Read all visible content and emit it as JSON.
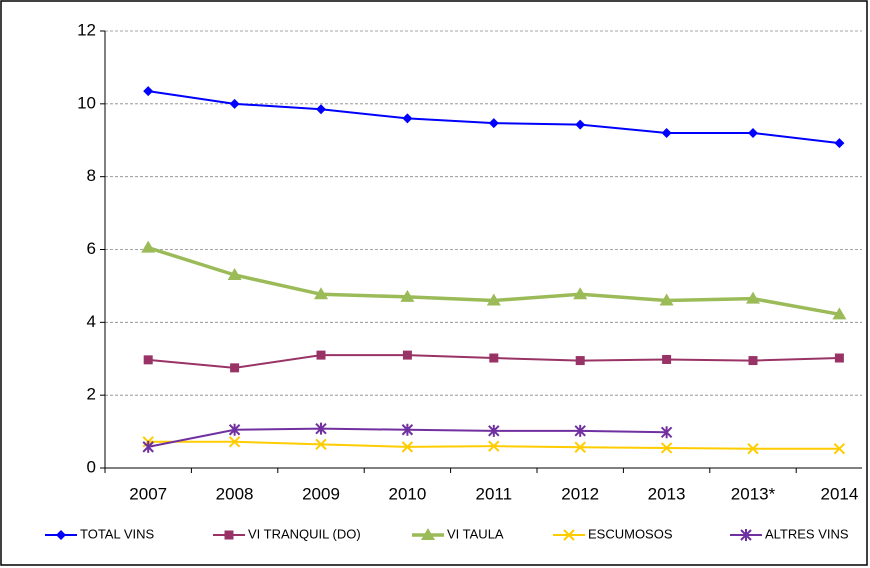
{
  "chart_data": {
    "type": "line",
    "categories": [
      "2007",
      "2008",
      "2009",
      "2010",
      "2011",
      "2012",
      "2013",
      "2013*",
      "2014"
    ],
    "series": [
      {
        "name": "TOTAL VINS",
        "color": "#0000ff",
        "marker": "diamond",
        "values": [
          10.35,
          10.0,
          9.85,
          9.6,
          9.47,
          9.43,
          9.2,
          9.2,
          8.92
        ]
      },
      {
        "name": "VI TRANQUIL (DO)",
        "color": "#993366",
        "marker": "square",
        "values": [
          2.97,
          2.75,
          3.1,
          3.1,
          3.02,
          2.95,
          2.98,
          2.95,
          3.02
        ]
      },
      {
        "name": "VI TAULA",
        "color": "#9bbb59",
        "marker": "triangle",
        "values": [
          6.05,
          5.3,
          4.77,
          4.7,
          4.6,
          4.77,
          4.6,
          4.65,
          4.22
        ]
      },
      {
        "name": "ESCUMOSOS",
        "color": "#ffcc00",
        "marker": "x",
        "values": [
          0.72,
          0.72,
          0.65,
          0.58,
          0.6,
          0.57,
          0.55,
          0.53,
          0.53
        ]
      },
      {
        "name": "ALTRES VINS",
        "color": "#7030a0",
        "marker": "asterisk",
        "values": [
          0.58,
          1.05,
          1.08,
          1.05,
          1.02,
          1.02,
          0.98,
          null,
          null
        ]
      }
    ],
    "ylim": [
      0,
      12
    ],
    "yticks": [
      0,
      2,
      4,
      6,
      8,
      10,
      12
    ],
    "grid": true,
    "legend": "bottom"
  }
}
